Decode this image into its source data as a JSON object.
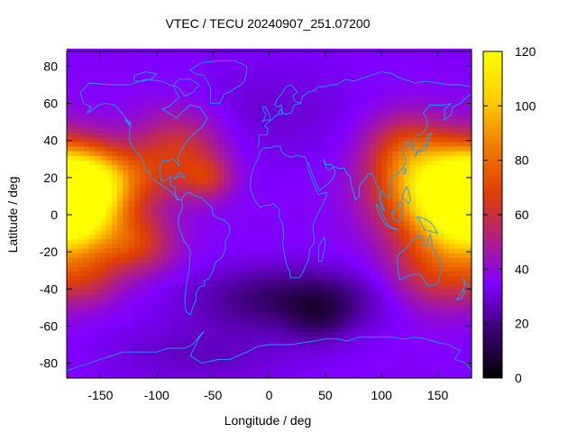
{
  "chart_data": {
    "type": "heatmap",
    "title": "VTEC / TECU 20240907_251.07200",
    "xlabel": "Longitude / deg",
    "ylabel": "Latitude / deg",
    "xlim": [
      -180,
      180
    ],
    "ylim": [
      -88,
      88
    ],
    "x_ticks": [
      -150,
      -100,
      -50,
      0,
      50,
      100,
      150
    ],
    "y_ticks": [
      -80,
      -60,
      -40,
      -20,
      0,
      20,
      40,
      60,
      80
    ],
    "colorbar": {
      "min": 0,
      "max": 120,
      "ticks": [
        0,
        20,
        40,
        60,
        80,
        100,
        120
      ],
      "palette": [
        "#000000",
        "#3a0070",
        "#8000ff",
        "#b02080",
        "#e04000",
        "#f08000",
        "#ffd000",
        "#ffff00"
      ]
    },
    "grid": false,
    "overlay": "coastlines",
    "background_tec": 35,
    "tec_features": [
      {
        "lon": -175,
        "lat": 5,
        "slon": 28,
        "slat": 18,
        "amp": 80
      },
      {
        "lon": -145,
        "lat": 20,
        "slon": 35,
        "slat": 12,
        "amp": 35
      },
      {
        "lon": -120,
        "lat": -15,
        "slon": 25,
        "slat": 12,
        "amp": 30
      },
      {
        "lon": -80,
        "lat": 35,
        "slon": 28,
        "slat": 15,
        "amp": 28
      },
      {
        "lon": -55,
        "lat": 20,
        "slon": 15,
        "slat": 8,
        "amp": 20
      },
      {
        "lon": 155,
        "lat": 12,
        "slon": 38,
        "slat": 18,
        "amp": 75
      },
      {
        "lon": 120,
        "lat": 35,
        "slon": 25,
        "slat": 14,
        "amp": 25
      },
      {
        "lon": 150,
        "lat": -30,
        "slon": 30,
        "slat": 15,
        "amp": 28
      },
      {
        "lon": -160,
        "lat": -35,
        "slon": 20,
        "slat": 10,
        "amp": 15
      },
      {
        "lon": 20,
        "lat": -45,
        "slon": 60,
        "slat": 12,
        "amp": -20
      },
      {
        "lon": 45,
        "lat": -55,
        "slon": 20,
        "slat": 10,
        "amp": -12
      },
      {
        "lon": 0,
        "lat": 55,
        "slon": 60,
        "slat": 20,
        "amp": -6
      },
      {
        "lon": -60,
        "lat": -75,
        "slon": 60,
        "slat": 12,
        "amp": -8
      }
    ]
  }
}
